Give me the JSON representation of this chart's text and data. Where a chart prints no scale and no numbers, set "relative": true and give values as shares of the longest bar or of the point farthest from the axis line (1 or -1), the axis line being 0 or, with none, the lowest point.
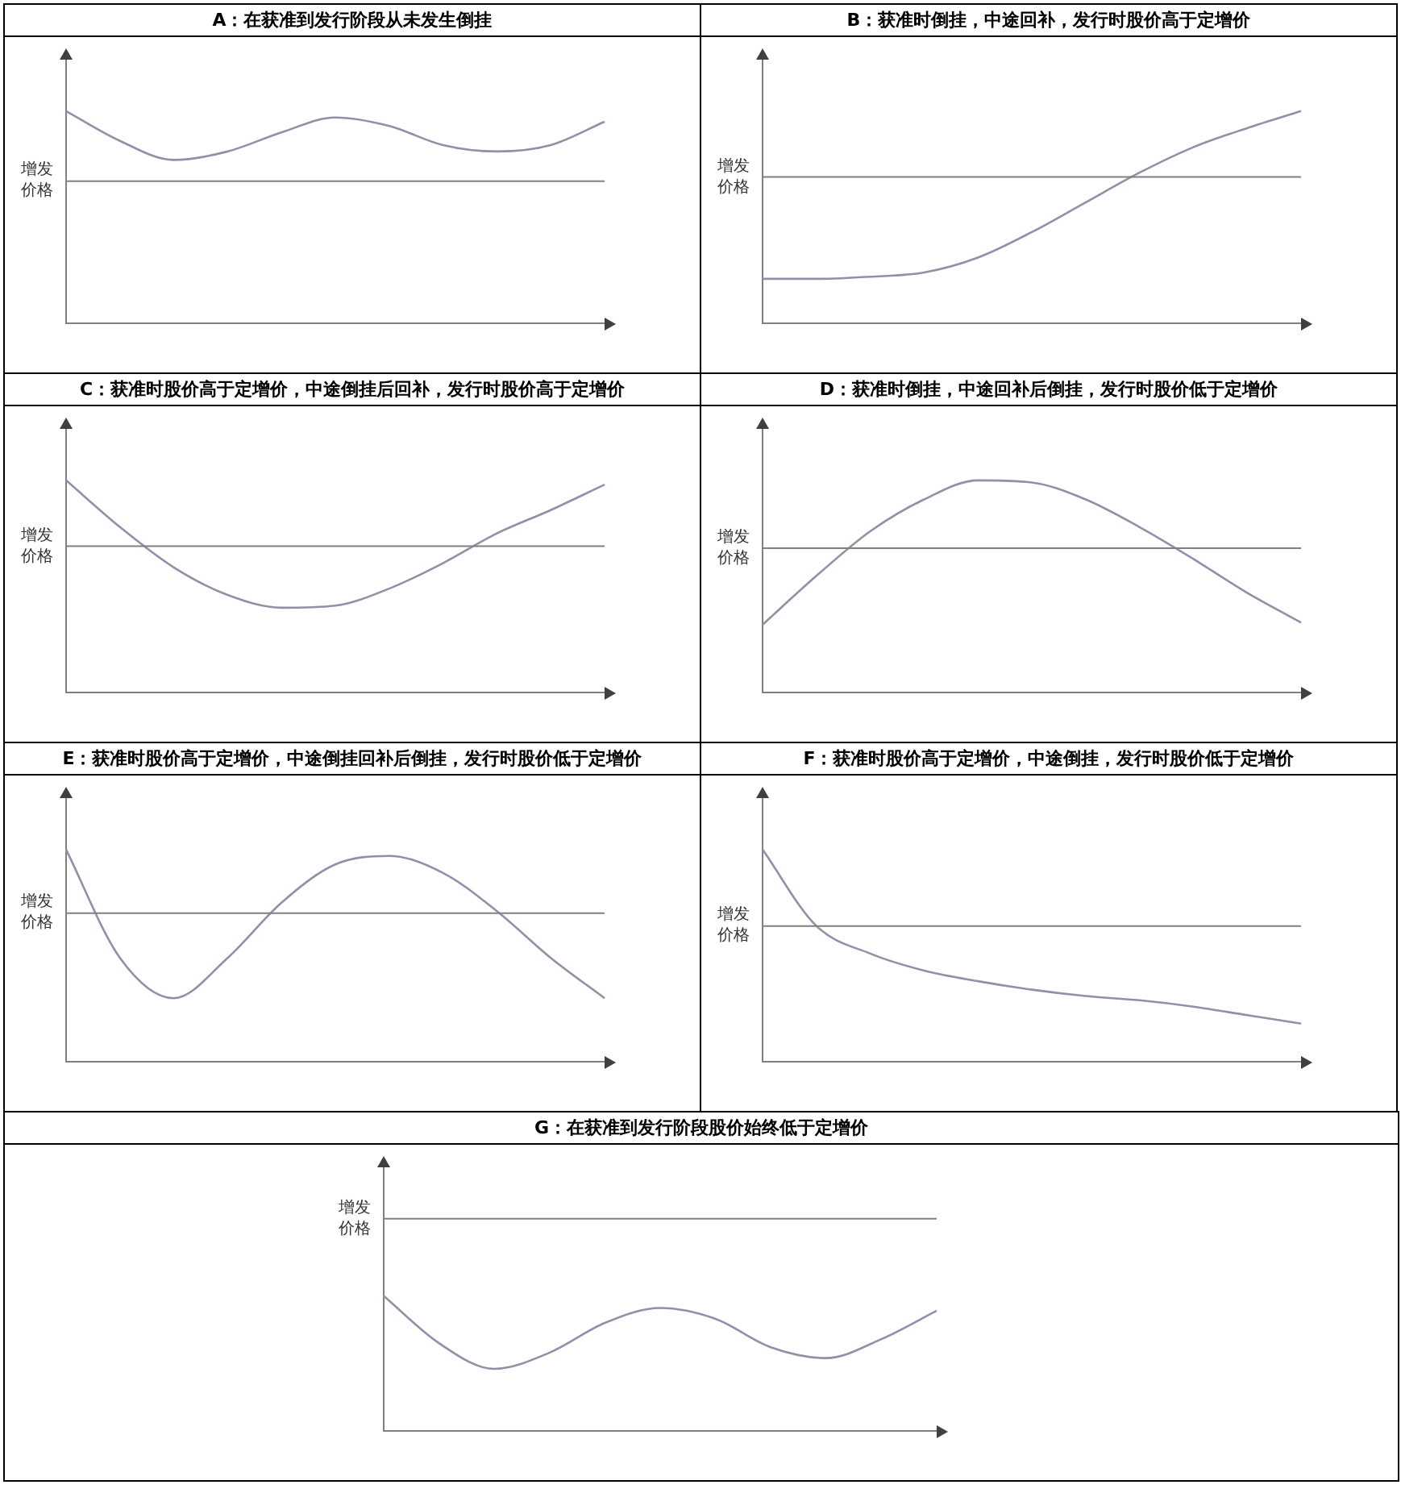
{
  "chart_data": [
    {
      "type": "line",
      "title": "A：在获准到发行阶段从未发生倒挂",
      "categories": [
        null,
        null,
        null,
        null,
        null,
        null,
        null,
        null,
        null,
        null,
        null
      ],
      "values": [
        1,
        0.86,
        0.77,
        0.81,
        0.9,
        0.97,
        0.93,
        0.84,
        0.81,
        0.84,
        0.95
      ],
      "color": "#8e91a8",
      "relative": true,
      "ref_lines": [
        {
          "axis": "y",
          "value": 0.67,
          "label": "增发价格",
          "color": "#808080"
        }
      ]
    },
    {
      "type": "line",
      "title": "B：获准时倒挂，中途回补，发行时股价高于定增价",
      "categories": [
        null,
        null,
        null,
        null,
        null,
        null,
        null,
        null,
        null,
        null,
        null
      ],
      "values": [
        0.21,
        0.21,
        0.22,
        0.24,
        0.31,
        0.43,
        0.57,
        0.71,
        0.83,
        0.92,
        1
      ],
      "color": "#8e91a8",
      "relative": true,
      "ref_lines": [
        {
          "axis": "y",
          "value": 0.69,
          "label": "增发价格",
          "color": "#808080"
        }
      ]
    },
    {
      "type": "line",
      "title": "C：获准时股价高于定增价，中途倒挂后回补，发行时股价高于定增价",
      "categories": [
        null,
        null,
        null,
        null,
        null,
        null,
        null,
        null,
        null,
        null,
        null
      ],
      "values": [
        1,
        0.78,
        0.59,
        0.46,
        0.4,
        0.41,
        0.49,
        0.61,
        0.75,
        0.86,
        0.98
      ],
      "color": "#8e91a8",
      "relative": true,
      "ref_lines": [
        {
          "axis": "y",
          "value": 0.69,
          "label": "增发价格",
          "color": "#808080"
        }
      ]
    },
    {
      "type": "line",
      "title": "D：获准时倒挂，中途回补后倒挂，发行时股价低于定增价",
      "categories": [
        null,
        null,
        null,
        null,
        null,
        null,
        null,
        null,
        null,
        null,
        null
      ],
      "values": [
        0.32,
        0.55,
        0.76,
        0.91,
        1,
        0.99,
        0.91,
        0.78,
        0.63,
        0.47,
        0.33
      ],
      "color": "#8e91a8",
      "relative": true,
      "ref_lines": [
        {
          "axis": "y",
          "value": 0.68,
          "label": "增发价格",
          "color": "#808080"
        }
      ]
    },
    {
      "type": "line",
      "title": "E：获准时股价高于定增价，中途倒挂回补后倒挂，发行时股价低于定增价",
      "categories": [
        null,
        null,
        null,
        null,
        null,
        null,
        null,
        null,
        null,
        null,
        null
      ],
      "values": [
        1,
        0.49,
        0.3,
        0.49,
        0.75,
        0.93,
        0.97,
        0.89,
        0.71,
        0.49,
        0.3
      ],
      "color": "#8e91a8",
      "relative": true,
      "ref_lines": [
        {
          "axis": "y",
          "value": 0.7,
          "label": "增发价格",
          "color": "#808080"
        }
      ]
    },
    {
      "type": "line",
      "title": "F：获准时股价高于定增价，中途倒挂，发行时股价低于定增价",
      "categories": [
        null,
        null,
        null,
        null,
        null,
        null,
        null,
        null,
        null,
        null,
        null
      ],
      "values": [
        1,
        0.64,
        0.51,
        0.43,
        0.38,
        0.34,
        0.31,
        0.29,
        0.26,
        0.22,
        0.18
      ],
      "color": "#8e91a8",
      "relative": true,
      "ref_lines": [
        {
          "axis": "y",
          "value": 0.64,
          "label": "增发价格",
          "color": "#808080"
        }
      ]
    },
    {
      "type": "line",
      "title": "G：在获准到发行阶段股价始终低于定增价",
      "categories": [
        null,
        null,
        null,
        null,
        null,
        null,
        null,
        null,
        null,
        null,
        null
      ],
      "values": [
        1,
        0.65,
        0.46,
        0.58,
        0.8,
        0.91,
        0.83,
        0.62,
        0.54,
        0.68,
        0.89
      ],
      "color": "#8e91a8",
      "relative": true,
      "ref_lines": [
        {
          "axis": "y",
          "value": 1.57,
          "label": "增发价格",
          "color": "#808080"
        }
      ]
    }
  ]
}
